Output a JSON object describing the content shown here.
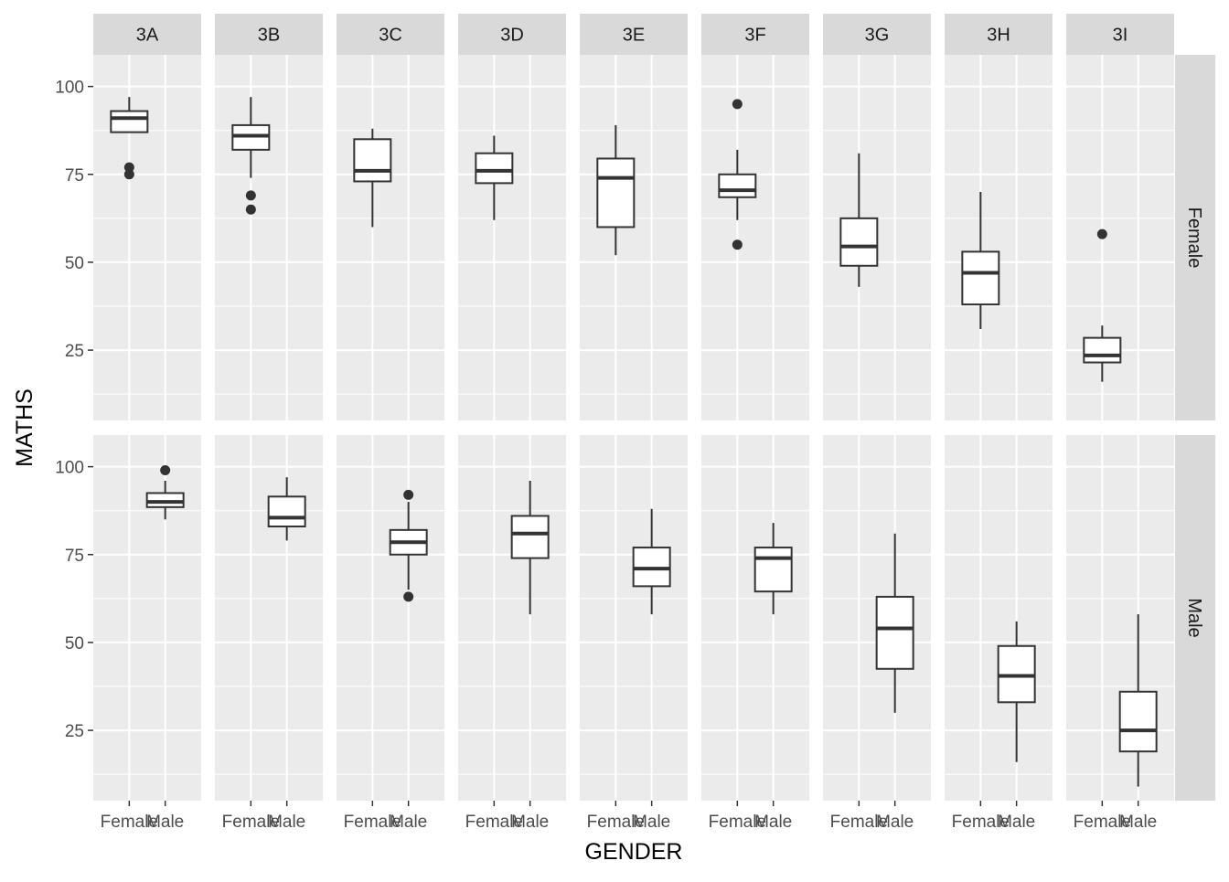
{
  "chart_data": {
    "type": "box",
    "xlabel": "GENDER",
    "ylabel": "MATHS",
    "x_categories": [
      "Female",
      "Male"
    ],
    "y_ticks": [
      25,
      50,
      75,
      100
    ],
    "ylim": [
      5,
      109
    ],
    "grid": true,
    "facet_cols": [
      "3A",
      "3B",
      "3C",
      "3D",
      "3E",
      "3F",
      "3G",
      "3H",
      "3I"
    ],
    "facet_rows": [
      "Female",
      "Male"
    ],
    "panels": [
      {
        "row": "Female",
        "col": "3A",
        "x": "Female",
        "box": {
          "lower_whisker": 87,
          "q1": 87,
          "median": 91,
          "q3": 93,
          "upper_whisker": 97
        },
        "outliers": [
          77,
          75
        ]
      },
      {
        "row": "Female",
        "col": "3B",
        "x": "Female",
        "box": {
          "lower_whisker": 74,
          "q1": 82,
          "median": 86,
          "q3": 89,
          "upper_whisker": 97
        },
        "outliers": [
          69,
          65
        ]
      },
      {
        "row": "Female",
        "col": "3C",
        "x": "Female",
        "box": {
          "lower_whisker": 60,
          "q1": 73,
          "median": 76,
          "q3": 85,
          "upper_whisker": 88
        },
        "outliers": []
      },
      {
        "row": "Female",
        "col": "3D",
        "x": "Female",
        "box": {
          "lower_whisker": 62,
          "q1": 72.5,
          "median": 76,
          "q3": 81,
          "upper_whisker": 86
        },
        "outliers": []
      },
      {
        "row": "Female",
        "col": "3E",
        "x": "Female",
        "box": {
          "lower_whisker": 52,
          "q1": 60,
          "median": 74,
          "q3": 79.5,
          "upper_whisker": 89
        },
        "outliers": []
      },
      {
        "row": "Female",
        "col": "3F",
        "x": "Female",
        "box": {
          "lower_whisker": 62,
          "q1": 68.5,
          "median": 70.5,
          "q3": 75,
          "upper_whisker": 82
        },
        "outliers": [
          95,
          55
        ]
      },
      {
        "row": "Female",
        "col": "3G",
        "x": "Female",
        "box": {
          "lower_whisker": 43,
          "q1": 49,
          "median": 54.5,
          "q3": 62.5,
          "upper_whisker": 81
        },
        "outliers": []
      },
      {
        "row": "Female",
        "col": "3H",
        "x": "Female",
        "box": {
          "lower_whisker": 31,
          "q1": 38,
          "median": 47,
          "q3": 53,
          "upper_whisker": 70
        },
        "outliers": []
      },
      {
        "row": "Female",
        "col": "3I",
        "x": "Female",
        "box": {
          "lower_whisker": 16,
          "q1": 21.5,
          "median": 23.5,
          "q3": 28.5,
          "upper_whisker": 32
        },
        "outliers": [
          58
        ]
      },
      {
        "row": "Male",
        "col": "3A",
        "x": "Male",
        "box": {
          "lower_whisker": 85,
          "q1": 88.5,
          "median": 90,
          "q3": 92.5,
          "upper_whisker": 96
        },
        "outliers": [
          99
        ]
      },
      {
        "row": "Male",
        "col": "3B",
        "x": "Male",
        "box": {
          "lower_whisker": 79,
          "q1": 83,
          "median": 85.5,
          "q3": 91.5,
          "upper_whisker": 97
        },
        "outliers": []
      },
      {
        "row": "Male",
        "col": "3C",
        "x": "Male",
        "box": {
          "lower_whisker": 65,
          "q1": 75,
          "median": 78.5,
          "q3": 82,
          "upper_whisker": 90
        },
        "outliers": [
          92,
          63
        ]
      },
      {
        "row": "Male",
        "col": "3D",
        "x": "Male",
        "box": {
          "lower_whisker": 58,
          "q1": 74,
          "median": 81,
          "q3": 86,
          "upper_whisker": 96
        },
        "outliers": []
      },
      {
        "row": "Male",
        "col": "3E",
        "x": "Male",
        "box": {
          "lower_whisker": 58,
          "q1": 66,
          "median": 71,
          "q3": 77,
          "upper_whisker": 88
        },
        "outliers": []
      },
      {
        "row": "Male",
        "col": "3F",
        "x": "Male",
        "box": {
          "lower_whisker": 58,
          "q1": 64.5,
          "median": 74,
          "q3": 77,
          "upper_whisker": 84
        },
        "outliers": []
      },
      {
        "row": "Male",
        "col": "3G",
        "x": "Male",
        "box": {
          "lower_whisker": 30,
          "q1": 42.5,
          "median": 54,
          "q3": 63,
          "upper_whisker": 81
        },
        "outliers": []
      },
      {
        "row": "Male",
        "col": "3H",
        "x": "Male",
        "box": {
          "lower_whisker": 16,
          "q1": 33,
          "median": 40.5,
          "q3": 49,
          "upper_whisker": 56
        },
        "outliers": []
      },
      {
        "row": "Male",
        "col": "3I",
        "x": "Male",
        "box": {
          "lower_whisker": 9,
          "q1": 19,
          "median": 25,
          "q3": 36,
          "upper_whisker": 58
        },
        "outliers": []
      }
    ]
  },
  "colors": {
    "panel_background": "#ebebeb",
    "strip_background": "#d9d9d9",
    "grid_line": "#ffffff",
    "box_line": "#333333",
    "box_fill": "#ffffff",
    "tick_text": "#4d4d4d"
  }
}
